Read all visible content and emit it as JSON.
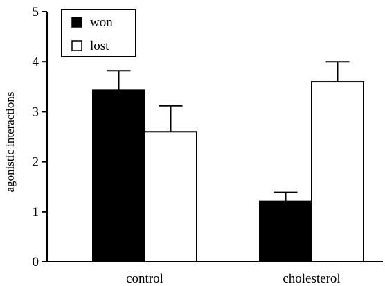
{
  "chart_data": {
    "type": "bar",
    "title": "",
    "xlabel": "",
    "ylabel": "agonistic interactions",
    "ylim": [
      0,
      5
    ],
    "yticks": [
      0,
      1,
      2,
      3,
      4,
      5
    ],
    "categories": [
      "control",
      "cholesterol"
    ],
    "series": [
      {
        "name": "won",
        "values": [
          3.43,
          1.21
        ],
        "errors": [
          0.39,
          0.18
        ],
        "color": "#000000"
      },
      {
        "name": "lost",
        "values": [
          2.6,
          3.6
        ],
        "errors": [
          0.52,
          0.4
        ],
        "color": "#ffffff"
      }
    ],
    "grid": false,
    "legend": "top-left"
  }
}
